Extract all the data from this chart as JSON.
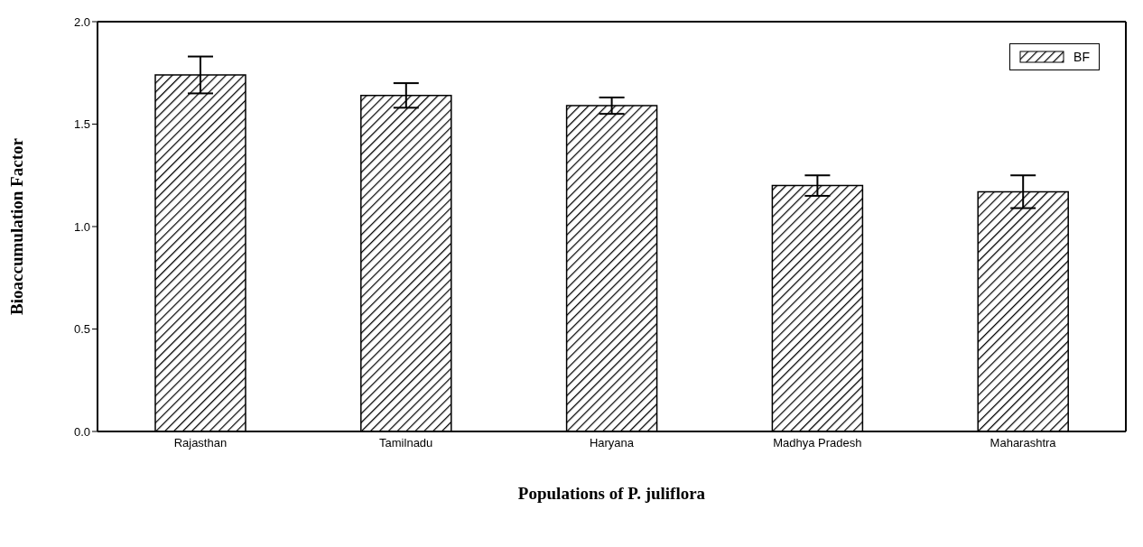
{
  "chart_data": {
    "type": "bar",
    "xlabel": "Populations of P. juliflora",
    "ylabel": "Bioaccumulation Factor",
    "categories": [
      "Rajasthan",
      "Tamilnadu",
      "Haryana",
      "Madhya Pradesh",
      "Maharashtra"
    ],
    "series": [
      {
        "name": "BF",
        "color": "#000000",
        "values": [
          1.74,
          1.64,
          1.59,
          1.2,
          1.17
        ],
        "errors": [
          0.09,
          0.06,
          0.04,
          0.05,
          0.08
        ]
      }
    ],
    "ylim": [
      0,
      2
    ],
    "yticks": [
      {
        "value": 0,
        "label": "0.0"
      },
      {
        "value": 0.5,
        "label": "0.5"
      },
      {
        "value": 1,
        "label": "1.0"
      },
      {
        "value": 1.5,
        "label": "1.5"
      },
      {
        "value": 2,
        "label": "2.0"
      }
    ],
    "grid": false,
    "legend": "top right"
  }
}
